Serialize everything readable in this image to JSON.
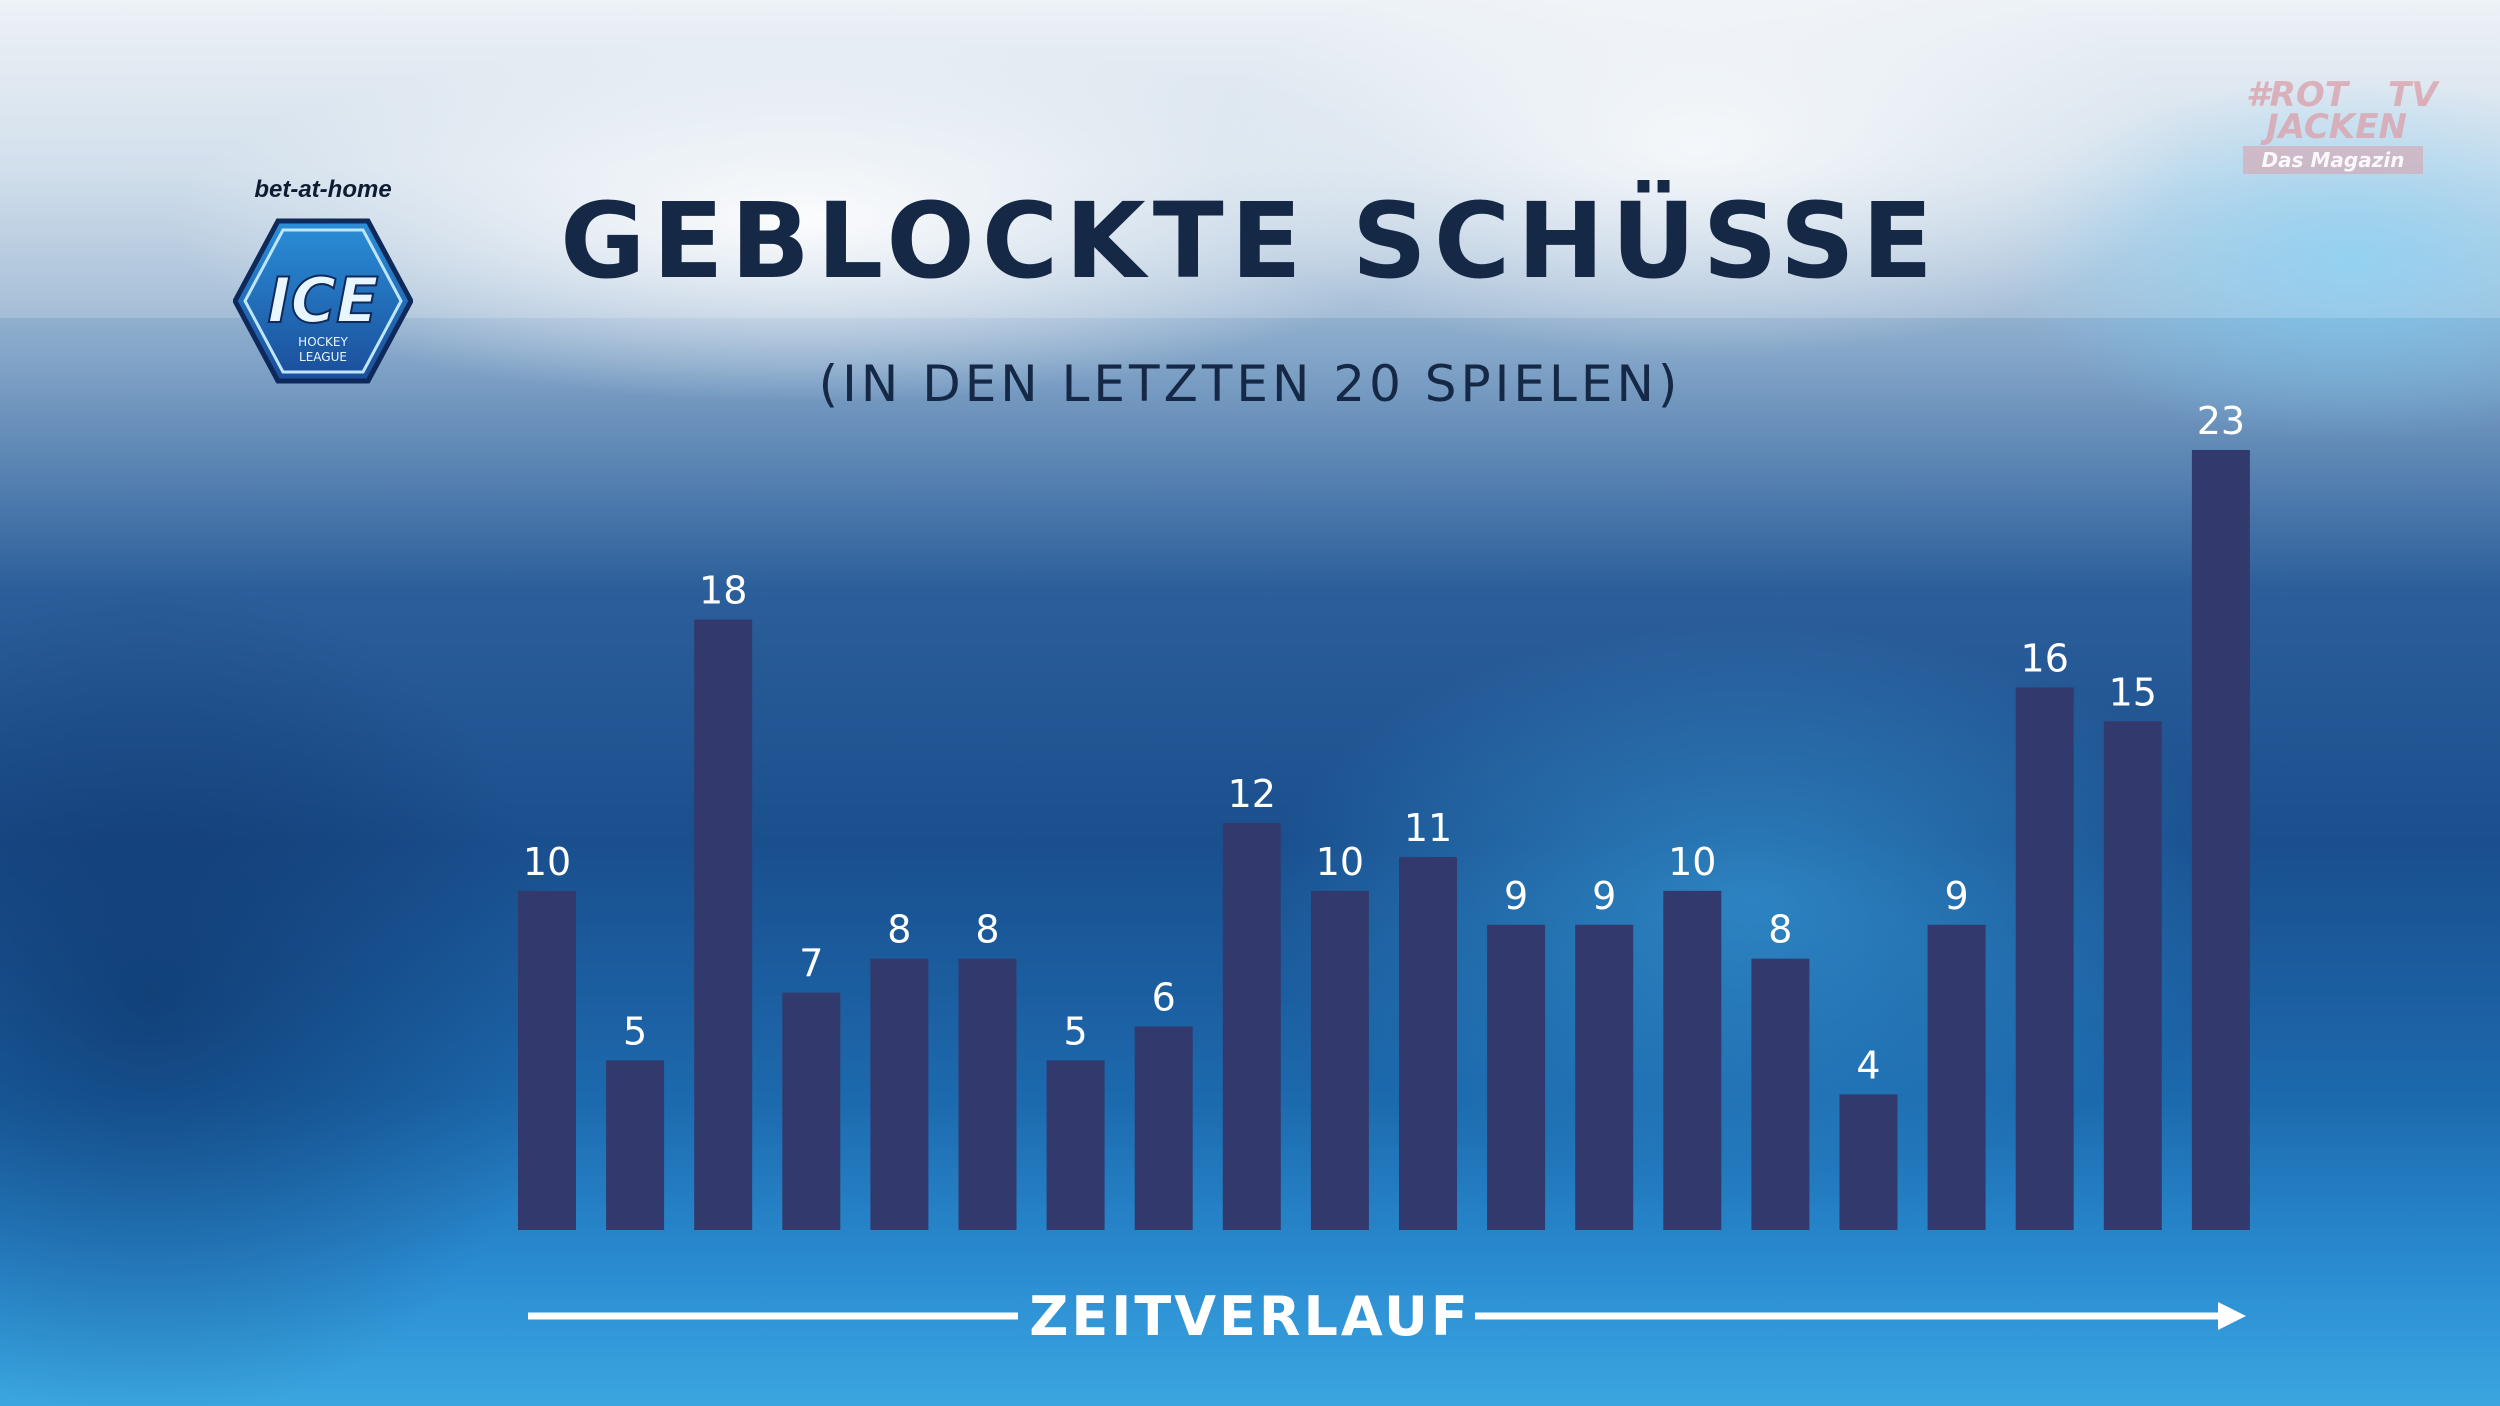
{
  "header": {
    "title": "GEBLOCKTE SCHÜSSE",
    "subtitle": "(IN DEN LETZTEN 20 SPIELEN)"
  },
  "logos": {
    "sponsor": "bet-at-home",
    "league_mark": "ICE",
    "league_sub_1": "HOCKEY",
    "league_sub_2": "LEAGUE",
    "magazine_line_1": "#ROT",
    "magazine_line_1b": "TV",
    "magazine_line_2": "JACKEN",
    "magazine_line_3": "Das Magazin"
  },
  "colors": {
    "bar": "#323a6d",
    "title": "#152845",
    "label": "#ffffff"
  },
  "chart_data": {
    "type": "bar",
    "title": "GEBLOCKTE SCHÜSSE",
    "subtitle": "(IN DEN LETZTEN 20 SPIELEN)",
    "xlabel": "ZEITVERLAUF",
    "ylabel": "",
    "values": [
      10,
      5,
      18,
      7,
      8,
      8,
      5,
      6,
      12,
      10,
      11,
      9,
      9,
      10,
      8,
      4,
      9,
      16,
      15,
      23
    ],
    "ylim": [
      0,
      23
    ],
    "grid": false,
    "data_labels": true
  }
}
